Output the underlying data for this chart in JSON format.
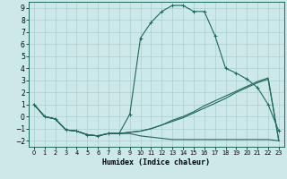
{
  "xlabel": "Humidex (Indice chaleur)",
  "xlim": [
    -0.5,
    23.5
  ],
  "ylim": [
    -2.5,
    9.5
  ],
  "yticks": [
    -2,
    -1,
    0,
    1,
    2,
    3,
    4,
    5,
    6,
    7,
    8,
    9
  ],
  "xticks": [
    0,
    1,
    2,
    3,
    4,
    5,
    6,
    7,
    8,
    9,
    10,
    11,
    12,
    13,
    14,
    15,
    16,
    17,
    18,
    19,
    20,
    21,
    22,
    23
  ],
  "bg_color": "#cce8e8",
  "grid_color": "#aacfcf",
  "line_color": "#1a6b5a",
  "lines": [
    {
      "x": [
        0,
        1,
        2,
        3,
        4,
        5,
        6,
        7,
        8,
        9,
        10,
        11,
        12,
        13,
        14,
        15,
        16,
        17,
        18,
        19,
        20,
        21,
        22,
        23
      ],
      "y": [
        1.0,
        0.0,
        -0.2,
        -1.1,
        -1.2,
        -1.5,
        -1.6,
        -1.4,
        -1.4,
        0.2,
        6.5,
        7.8,
        8.7,
        9.2,
        9.2,
        8.7,
        8.7,
        6.7,
        4.0,
        3.6,
        3.1,
        2.4,
        1.0,
        -1.2
      ],
      "marker": "+"
    },
    {
      "x": [
        0,
        1,
        2,
        3,
        4,
        5,
        6,
        7,
        8,
        9,
        10,
        11,
        12,
        13,
        14,
        15,
        16,
        17,
        18,
        19,
        20,
        21,
        22,
        23
      ],
      "y": [
        1.0,
        0.0,
        -0.2,
        -1.1,
        -1.2,
        -1.5,
        -1.6,
        -1.4,
        -1.4,
        -1.3,
        -1.2,
        -1.0,
        -0.7,
        -0.4,
        -0.1,
        0.3,
        0.7,
        1.1,
        1.5,
        2.0,
        2.4,
        2.8,
        3.1,
        -2.0
      ],
      "marker": null
    },
    {
      "x": [
        0,
        1,
        2,
        3,
        4,
        5,
        6,
        7,
        8,
        9,
        10,
        11,
        12,
        13,
        14,
        15,
        16,
        17,
        18,
        19,
        20,
        21,
        22,
        23
      ],
      "y": [
        1.0,
        0.0,
        -0.2,
        -1.1,
        -1.2,
        -1.5,
        -1.6,
        -1.4,
        -1.4,
        -1.3,
        -1.2,
        -1.0,
        -0.7,
        -0.3,
        0.0,
        0.4,
        0.9,
        1.3,
        1.7,
        2.1,
        2.5,
        2.9,
        3.2,
        -2.0
      ],
      "marker": null
    },
    {
      "x": [
        0,
        1,
        2,
        3,
        4,
        5,
        6,
        7,
        8,
        9,
        10,
        11,
        12,
        13,
        14,
        15,
        16,
        17,
        18,
        19,
        20,
        21,
        22,
        23
      ],
      "y": [
        1.0,
        0.0,
        -0.2,
        -1.1,
        -1.2,
        -1.5,
        -1.6,
        -1.4,
        -1.4,
        -1.4,
        -1.6,
        -1.7,
        -1.8,
        -1.9,
        -1.9,
        -1.9,
        -1.9,
        -1.9,
        -1.9,
        -1.9,
        -1.9,
        -1.9,
        -1.9,
        -2.0
      ],
      "marker": null
    }
  ]
}
